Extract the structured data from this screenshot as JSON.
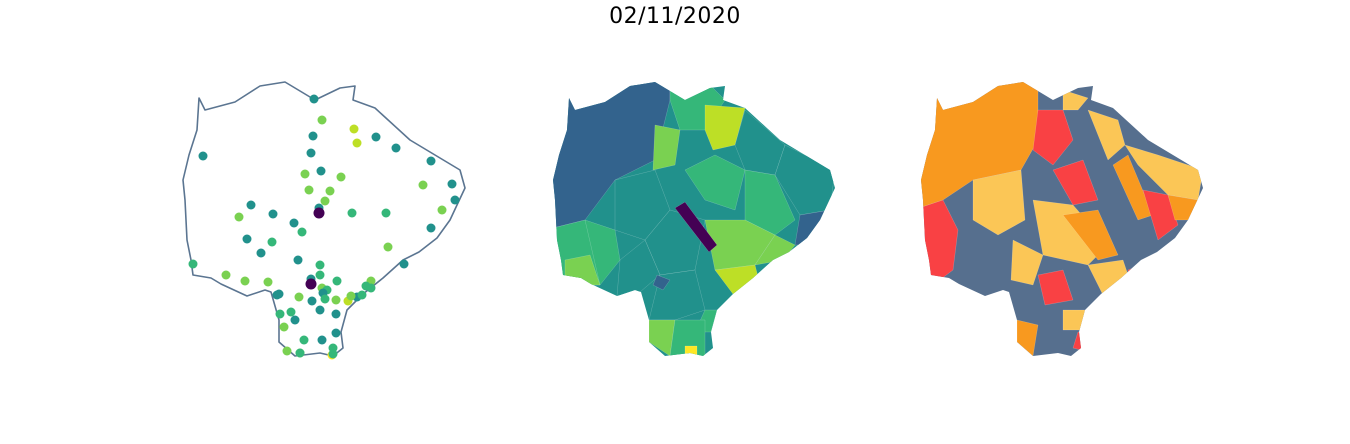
{
  "figure": {
    "title": "02/11/2020"
  },
  "panels": [
    {
      "kind": "points",
      "outline_color": "#5b7591"
    },
    {
      "kind": "choropleth",
      "palette": "viridis"
    },
    {
      "kind": "choropleth",
      "palette": [
        "#566f8e",
        "#f8991f",
        "#fbc656",
        "#f94144"
      ]
    }
  ],
  "colors": {
    "dark_purple": "#440154",
    "deep_blue": "#33638d",
    "teal": "#21918c",
    "green": "#35b779",
    "light_green": "#7ad151",
    "lime": "#bddf26",
    "yellow": "#fde725",
    "slate": "#566f8e",
    "orange": "#f8991f",
    "amber": "#fbc656",
    "red": "#f94144"
  }
}
